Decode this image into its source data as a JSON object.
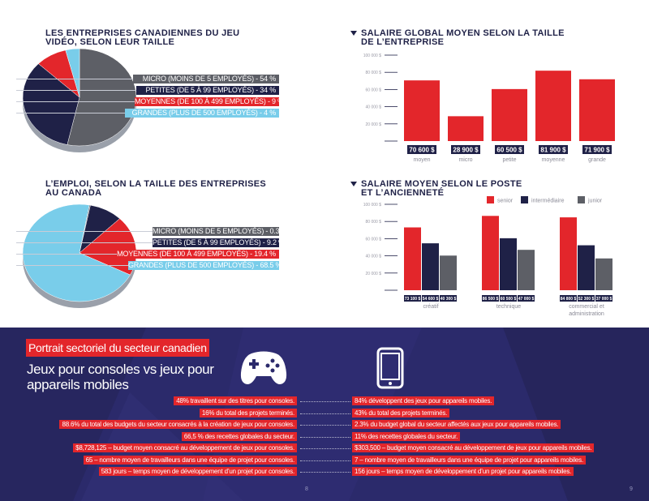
{
  "page_left": {
    "section1": {
      "title_line1": "LES ENTREPRISES CANADIENNES DU JEU",
      "title_line2": "VIDÉO, SELON LEUR TAILLE",
      "labels": [
        "MICRO (MOINS DE 5 EMPLOYÉS) - 54 %",
        "PETITES (DE 5 À 99 EMPLOYÉS) - 34 %",
        "MOYENNES  (DE 100 À 499 EMPLOYÉS) - 9 %",
        "GRANDES (PLUS DE 500 EMPLOYÉS) - 4 %"
      ]
    },
    "section2": {
      "title_line1": "L’EMPLOI, SELON LA TAILLE DES ENTREPRISES",
      "title_line2": "AU CANADA",
      "labels": [
        "MICRO (MOINS DE 5 EMPLOYÉS) - 0.3 %",
        "PETITES (DE 5 À 99 EMPLOYÉS) - 9.2 %",
        "MOYENNES  (DE 100 À 499 EMPLOYÉS) - 19.4 %",
        "GRANDES (PLUS DE 500 EMPLOYÉS) - 68.5 %"
      ]
    }
  },
  "page_right": {
    "section1": {
      "title_line1": "SALAIRE GLOBAL MOYEN SELON LA TAILLE",
      "title_line2": "DE L’ENTREPRISE"
    },
    "section2": {
      "title_line1": "SALAIRE MOYEN SELON LE POSTE",
      "title_line2": "ET L’ANCIENNETÉ"
    }
  },
  "colors": {
    "navy": "#1f2147",
    "grey": "#5d5f66",
    "red": "#e3262b",
    "lightblue": "#79cdea",
    "bottom_bg": "#2b2a6b"
  },
  "chart_data": [
    {
      "type": "pie",
      "labels": [
        "MICRO (MOINS DE 5 EMPLOYÉS)",
        "PETITES (DE 5 À 99 EMPLOYÉS)",
        "MOYENNES (DE 100 À 499 EMPLOYÉS)",
        "GRANDES (PLUS DE 500 EMPLOYÉS)"
      ],
      "values": [
        54,
        34,
        9,
        4
      ],
      "title": "LES ENTREPRISES CANADIENNES DU JEU VIDÉO, SELON LEUR TAILLE"
    },
    {
      "type": "pie",
      "labels": [
        "MICRO (MOINS DE 5 EMPLOYÉS)",
        "PETITES (DE 5 À 99 EMPLOYÉS)",
        "MOYENNES (DE 100 À 499 EMPLOYÉS)",
        "GRANDES (PLUS DE 500 EMPLOYÉS)"
      ],
      "values": [
        0.3,
        9.2,
        19.4,
        68.5
      ],
      "title": "L’EMPLOI, SELON LA TAILLE DES ENTREPRISES AU CANADA"
    },
    {
      "type": "bar",
      "title": "SALAIRE GLOBAL MOYEN SELON LA TAILLE DE L’ENTREPRISE",
      "categories": [
        "moyen",
        "micro",
        "petite",
        "moyenne",
        "grande"
      ],
      "values": [
        70600,
        28900,
        60500,
        81900,
        71900
      ],
      "value_labels": [
        "70 600 $",
        "28 900 $",
        "60 500 $",
        "81 900 $",
        "71 900 $"
      ],
      "yticks": [
        "100 000 $",
        "80 000 $",
        "60 000 $",
        "40 000 $",
        "20 000 $"
      ],
      "ylim": [
        0,
        100000
      ]
    },
    {
      "type": "bar",
      "title": "SALAIRE MOYEN SELON LE POSTE ET L’ANCIENNETÉ",
      "categories": [
        "créatif",
        "technique",
        "commercial et administration"
      ],
      "series": [
        {
          "name": "senior",
          "values": [
            73100,
            86500,
            84800
          ],
          "value_labels": [
            "73 100 $",
            "86 500 $",
            "84 800 $"
          ]
        },
        {
          "name": "intermédiaire",
          "values": [
            54600,
            60500,
            52300
          ],
          "value_labels": [
            "54 600 $",
            "60 500 $",
            "52 300 $"
          ]
        },
        {
          "name": "junior",
          "values": [
            40300,
            47000,
            37000
          ],
          "value_labels": [
            "40 300 $",
            "47 000 $",
            "37 000 $"
          ]
        }
      ],
      "yticks": [
        "100 000 $",
        "80 000 $",
        "60 000 $",
        "40 000 $",
        "20 000 $"
      ],
      "ylim": [
        0,
        100000
      ],
      "legend": "top-right"
    }
  ],
  "bottom": {
    "heading": "Portrait sectoriel du secteur canadien",
    "subheading_line1": "Jeux pour consoles vs jeux pour",
    "subheading_line2": "appareils mobiles",
    "consoles": [
      "48% travaillent sur des titres pour consoles.",
      "16% du total des projets terminés.",
      "88.6% du total des budgets du secteur consacrés à la création de jeux pour consoles.",
      "66,5 % des recettes globales du secteur.",
      "$8,728,125 – budget moyen consacré au développement de jeux pour consoles.",
      "65 – nombre moyen de travailleurs dans une équipe de projet pour consoles.",
      "583 jours – temps moyen de développement d’un projet pour consoles."
    ],
    "mobile": [
      "84% développent des jeux pour appareils mobiles.",
      "43% du total des projets terminés.",
      "2.3% du budget global du secteur affectés aux jeux pour appareils mobiles.",
      "11% des recettes globales du secteur.",
      "$303,500 – budget moyen consacré au développement de jeux pour appareils mobiles.",
      "7 – nombre moyen de travailleurs dans une équipe de projet pour appareils mobiles.",
      "156 jours – temps moyen de développement d’un projet pour appareils mobiles."
    ],
    "page_num_left": "8",
    "page_num_right": "9"
  }
}
